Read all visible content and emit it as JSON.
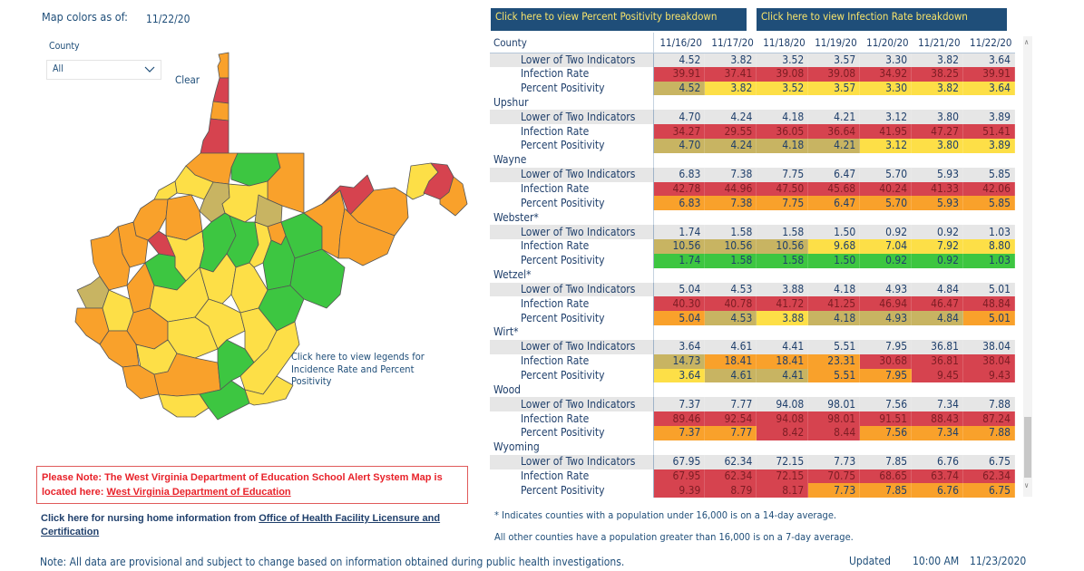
{
  "header": {
    "map_colors_label": "Map colors as of:",
    "map_colors_date": "11/22/20"
  },
  "filter": {
    "county_label": "County",
    "county_value": "All",
    "clear_label": "Clear"
  },
  "map": {
    "legend_link": "Click here to view legends for Incidence Rate and Percent Positivity"
  },
  "colors": {
    "red": "#d6434f",
    "orange": "#f9a12b",
    "yellow": "#fddf47",
    "olive": "#c8b462",
    "green": "#3dc641",
    "button_bg": "#1f4e79",
    "button_text": "#f7e36b"
  },
  "buttons": {
    "percent_positivity": "Click here to view Percent Positivity breakdown",
    "infection_rate": "Click here to view Infection Rate breakdown"
  },
  "table": {
    "county_header": "County",
    "dates": [
      "11/16/20",
      "11/17/20",
      "11/18/20",
      "11/19/20",
      "11/20/20",
      "11/21/20",
      "11/22/20"
    ],
    "partial_first": {
      "rows": [
        {
          "label": "Lower of Two Indicators",
          "values": [
            "4.52",
            "3.82",
            "3.52",
            "3.57",
            "3.30",
            "3.82",
            "3.64"
          ],
          "colors": [
            "gray",
            "gray",
            "gray",
            "gray",
            "gray",
            "gray",
            "gray"
          ]
        },
        {
          "label": "Infection Rate",
          "values": [
            "39.91",
            "37.41",
            "39.08",
            "39.08",
            "34.92",
            "38.25",
            "39.91"
          ],
          "colors": [
            "red",
            "red",
            "red",
            "red",
            "red",
            "red",
            "red"
          ]
        },
        {
          "label": "Percent Positivity",
          "values": [
            "4.52",
            "3.82",
            "3.52",
            "3.57",
            "3.30",
            "3.82",
            "3.64"
          ],
          "colors": [
            "olive",
            "yellow",
            "yellow",
            "yellow",
            "yellow",
            "yellow",
            "yellow"
          ]
        }
      ]
    },
    "counties": [
      {
        "name": "Upshur",
        "rows": [
          {
            "label": "Lower of Two Indicators",
            "values": [
              "4.70",
              "4.24",
              "4.18",
              "4.21",
              "3.12",
              "3.80",
              "3.89"
            ],
            "colors": [
              "gray",
              "gray",
              "gray",
              "gray",
              "gray",
              "gray",
              "gray"
            ]
          },
          {
            "label": "Infection Rate",
            "values": [
              "34.27",
              "29.55",
              "36.05",
              "36.64",
              "41.95",
              "47.27",
              "51.41"
            ],
            "colors": [
              "red",
              "red",
              "red",
              "red",
              "red",
              "red",
              "red"
            ]
          },
          {
            "label": "Percent Positivity",
            "values": [
              "4.70",
              "4.24",
              "4.18",
              "4.21",
              "3.12",
              "3.80",
              "3.89"
            ],
            "colors": [
              "olive",
              "olive",
              "olive",
              "olive",
              "yellow",
              "yellow",
              "yellow"
            ]
          }
        ]
      },
      {
        "name": "Wayne",
        "rows": [
          {
            "label": "Lower of Two Indicators",
            "values": [
              "6.83",
              "7.38",
              "7.75",
              "6.47",
              "5.70",
              "5.93",
              "5.85"
            ],
            "colors": [
              "gray",
              "gray",
              "gray",
              "gray",
              "gray",
              "gray",
              "gray"
            ]
          },
          {
            "label": "Infection Rate",
            "values": [
              "42.78",
              "44.96",
              "47.50",
              "45.68",
              "40.24",
              "41.33",
              "42.06"
            ],
            "colors": [
              "red",
              "red",
              "red",
              "red",
              "red",
              "red",
              "red"
            ]
          },
          {
            "label": "Percent Positivity",
            "values": [
              "6.83",
              "7.38",
              "7.75",
              "6.47",
              "5.70",
              "5.93",
              "5.85"
            ],
            "colors": [
              "orange",
              "orange",
              "orange",
              "orange",
              "orange",
              "orange",
              "orange"
            ]
          }
        ]
      },
      {
        "name": "Webster*",
        "rows": [
          {
            "label": "Lower of Two Indicators",
            "values": [
              "1.74",
              "1.58",
              "1.58",
              "1.50",
              "0.92",
              "0.92",
              "1.03"
            ],
            "colors": [
              "gray",
              "gray",
              "gray",
              "gray",
              "gray",
              "gray",
              "gray"
            ]
          },
          {
            "label": "Infection Rate",
            "values": [
              "10.56",
              "10.56",
              "10.56",
              "9.68",
              "7.04",
              "7.92",
              "8.80"
            ],
            "colors": [
              "olive",
              "olive",
              "olive",
              "yellow",
              "yellow",
              "yellow",
              "yellow"
            ]
          },
          {
            "label": "Percent Positivity",
            "values": [
              "1.74",
              "1.58",
              "1.58",
              "1.50",
              "0.92",
              "0.92",
              "1.03"
            ],
            "colors": [
              "green",
              "green",
              "green",
              "green",
              "green",
              "green",
              "green"
            ]
          }
        ]
      },
      {
        "name": "Wetzel*",
        "rows": [
          {
            "label": "Lower of Two Indicators",
            "values": [
              "5.04",
              "4.53",
              "3.88",
              "4.18",
              "4.93",
              "4.84",
              "5.01"
            ],
            "colors": [
              "gray",
              "gray",
              "gray",
              "gray",
              "gray",
              "gray",
              "gray"
            ]
          },
          {
            "label": "Infection Rate",
            "values": [
              "40.30",
              "40.78",
              "41.72",
              "41.25",
              "46.94",
              "46.47",
              "48.84"
            ],
            "colors": [
              "red",
              "red",
              "red",
              "red",
              "red",
              "red",
              "red"
            ]
          },
          {
            "label": "Percent Positivity",
            "values": [
              "5.04",
              "4.53",
              "3.88",
              "4.18",
              "4.93",
              "4.84",
              "5.01"
            ],
            "colors": [
              "orange",
              "olive",
              "yellow",
              "olive",
              "olive",
              "olive",
              "orange"
            ]
          }
        ]
      },
      {
        "name": "Wirt*",
        "rows": [
          {
            "label": "Lower of Two Indicators",
            "values": [
              "3.64",
              "4.61",
              "4.41",
              "5.51",
              "7.95",
              "36.81",
              "38.04"
            ],
            "colors": [
              "gray",
              "gray",
              "gray",
              "gray",
              "gray",
              "gray",
              "gray"
            ]
          },
          {
            "label": "Infection Rate",
            "values": [
              "14.73",
              "18.41",
              "18.41",
              "23.31",
              "30.68",
              "36.81",
              "38.04"
            ],
            "colors": [
              "olive",
              "orange",
              "orange",
              "orange",
              "red",
              "red",
              "red"
            ]
          },
          {
            "label": "Percent Positivity",
            "values": [
              "3.64",
              "4.61",
              "4.41",
              "5.51",
              "7.95",
              "9.45",
              "9.43"
            ],
            "colors": [
              "yellow",
              "olive",
              "olive",
              "orange",
              "orange",
              "red",
              "red"
            ]
          }
        ]
      },
      {
        "name": "Wood",
        "rows": [
          {
            "label": "Lower of Two Indicators",
            "values": [
              "7.37",
              "7.77",
              "94.08",
              "98.01",
              "7.56",
              "7.34",
              "7.88"
            ],
            "colors": [
              "gray",
              "gray",
              "gray",
              "gray",
              "gray",
              "gray",
              "gray"
            ]
          },
          {
            "label": "Infection Rate",
            "values": [
              "89.46",
              "92.54",
              "94.08",
              "98.01",
              "91.51",
              "88.43",
              "87.24"
            ],
            "colors": [
              "red",
              "red",
              "red",
              "red",
              "red",
              "red",
              "red"
            ]
          },
          {
            "label": "Percent Positivity",
            "values": [
              "7.37",
              "7.77",
              "8.42",
              "8.44",
              "7.56",
              "7.34",
              "7.88"
            ],
            "colors": [
              "orange",
              "orange",
              "red",
              "red",
              "orange",
              "orange",
              "orange"
            ]
          }
        ]
      },
      {
        "name": "Wyoming",
        "rows": [
          {
            "label": "Lower of Two Indicators",
            "values": [
              "67.95",
              "62.34",
              "72.15",
              "7.73",
              "7.85",
              "6.76",
              "6.75"
            ],
            "colors": [
              "gray",
              "gray",
              "gray",
              "gray",
              "gray",
              "gray",
              "gray"
            ]
          },
          {
            "label": "Infection Rate",
            "values": [
              "67.95",
              "62.34",
              "72.15",
              "70.75",
              "68.65",
              "63.74",
              "62.34"
            ],
            "colors": [
              "red",
              "red",
              "red",
              "red",
              "red",
              "red",
              "red"
            ]
          },
          {
            "label": "Percent Positivity",
            "values": [
              "9.39",
              "8.79",
              "8.17",
              "7.73",
              "7.85",
              "6.76",
              "6.75"
            ],
            "colors": [
              "red",
              "red",
              "red",
              "orange",
              "orange",
              "orange",
              "orange"
            ]
          }
        ]
      }
    ]
  },
  "notes": {
    "asterisk": "* Indicates counties with a population under 16,000 is on a 14-day average.",
    "population": "All other counties have a population greater than 16,000 is on a 7-day average.",
    "education_prefix": "Please Note: The West Virginia Department of Education School Alert System Map is located here: ",
    "education_link": "West Virginia Department of Education",
    "nursing_prefix": "Click here for nursing home information from ",
    "nursing_link": "Office of Health Facility Licensure and Certification",
    "provisional": "Note: All data are provisional and subject to change based on information obtained during public health investigations."
  },
  "updated": {
    "label": "Updated",
    "time": "10:00 AM",
    "date": "11/23/2020"
  }
}
